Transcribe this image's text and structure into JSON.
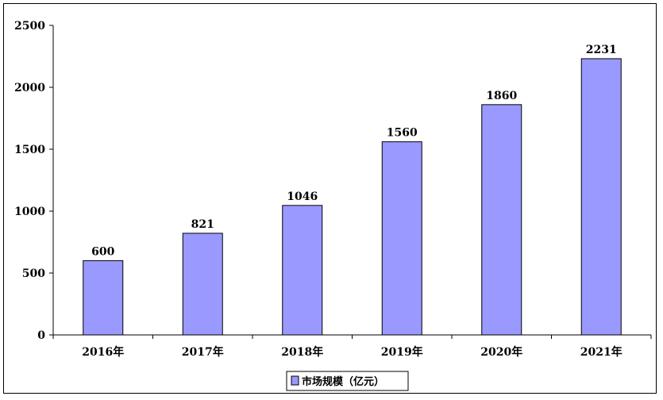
{
  "chart_data": {
    "type": "bar",
    "categories": [
      "2016年",
      "2017年",
      "2018年",
      "2019年",
      "2020年",
      "2021年"
    ],
    "series": [
      {
        "name": "市场规模（亿元）",
        "values": [
          600,
          821,
          1046,
          1560,
          1860,
          2231
        ]
      }
    ],
    "data_labels": [
      "600",
      "821",
      "1046",
      "1560",
      "1860",
      "2231"
    ],
    "y_ticks": [
      "0",
      "500",
      "1000",
      "1500",
      "2000",
      "2500"
    ],
    "ylim": [
      0,
      2500
    ],
    "grid": false,
    "legend_position": "bottom",
    "colors": {
      "bar_fill": "#9999FF",
      "bar_stroke": "#000000",
      "axis": "#000000"
    }
  }
}
